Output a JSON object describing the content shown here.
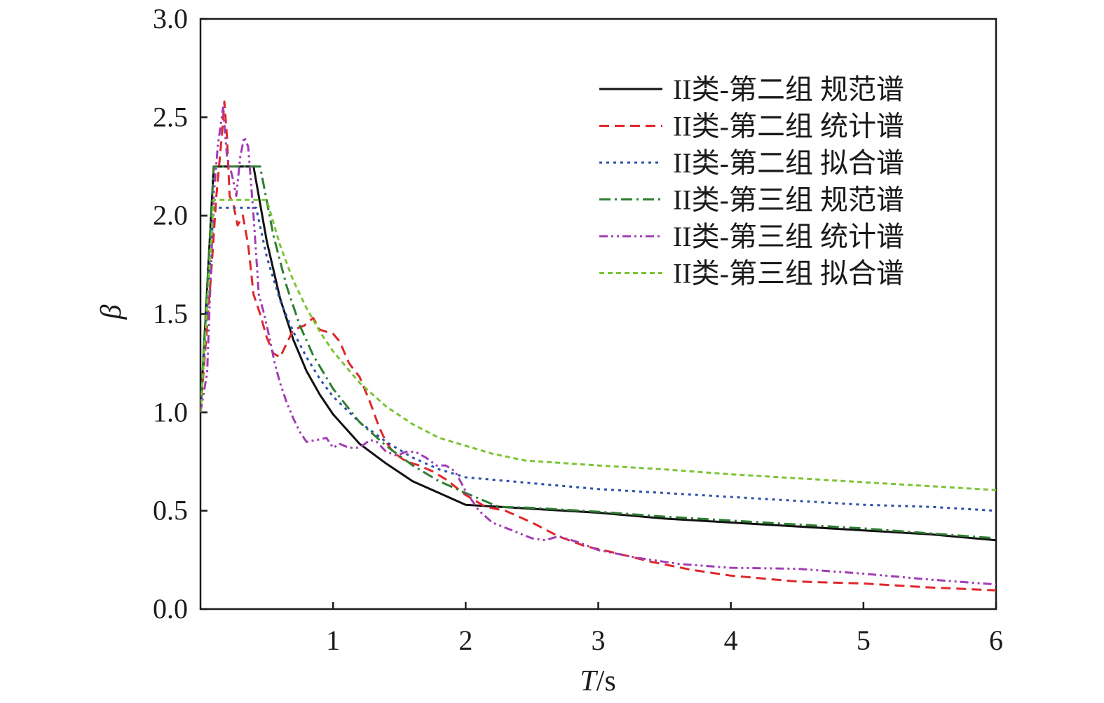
{
  "chart_data": {
    "type": "line",
    "xlabel_italic": "T",
    "xlabel_unit": "/s",
    "ylabel": "β",
    "xlim": [
      0,
      6
    ],
    "ylim": [
      0,
      3.0
    ],
    "x_ticks": [
      1,
      2,
      3,
      4,
      5,
      6
    ],
    "y_ticks": [
      0.0,
      0.5,
      1.0,
      1.5,
      2.0,
      2.5,
      3.0
    ],
    "x_tick_labels": [
      "1",
      "2",
      "3",
      "4",
      "5",
      "6"
    ],
    "y_tick_labels": [
      "0.0",
      "0.5",
      "1.0",
      "1.5",
      "2.0",
      "2.5",
      "3.0"
    ],
    "grid": false,
    "legend_position": "top-right",
    "series": [
      {
        "name": "II类-第二组 规范谱",
        "color": "#111111",
        "dash": "solid",
        "points": [
          [
            0,
            1.0
          ],
          [
            0.1,
            2.25
          ],
          [
            0.4,
            2.25
          ],
          [
            0.5,
            1.87
          ],
          [
            0.6,
            1.58
          ],
          [
            0.7,
            1.37
          ],
          [
            0.8,
            1.21
          ],
          [
            0.9,
            1.09
          ],
          [
            1.0,
            0.99
          ],
          [
            1.2,
            0.84
          ],
          [
            1.4,
            0.74
          ],
          [
            1.6,
            0.65
          ],
          [
            1.8,
            0.59
          ],
          [
            2.0,
            0.53
          ],
          [
            2.5,
            0.51
          ],
          [
            3.0,
            0.49
          ],
          [
            3.5,
            0.46
          ],
          [
            4.0,
            0.44
          ],
          [
            4.5,
            0.42
          ],
          [
            5.0,
            0.4
          ],
          [
            5.5,
            0.38
          ],
          [
            6.0,
            0.35
          ]
        ]
      },
      {
        "name": "II类-第二组 统计谱",
        "color": "#e0262b",
        "dash": "long-dash",
        "points": [
          [
            0,
            1.0
          ],
          [
            0.08,
            1.7
          ],
          [
            0.12,
            2.1
          ],
          [
            0.16,
            2.4
          ],
          [
            0.18,
            2.58
          ],
          [
            0.2,
            2.4
          ],
          [
            0.22,
            2.1
          ],
          [
            0.25,
            2.05
          ],
          [
            0.28,
            1.95
          ],
          [
            0.32,
            2.0
          ],
          [
            0.36,
            1.85
          ],
          [
            0.4,
            1.6
          ],
          [
            0.45,
            1.5
          ],
          [
            0.5,
            1.38
          ],
          [
            0.55,
            1.3
          ],
          [
            0.6,
            1.28
          ],
          [
            0.65,
            1.35
          ],
          [
            0.7,
            1.42
          ],
          [
            0.78,
            1.44
          ],
          [
            0.85,
            1.48
          ],
          [
            0.9,
            1.42
          ],
          [
            1.0,
            1.4
          ],
          [
            1.05,
            1.36
          ],
          [
            1.12,
            1.25
          ],
          [
            1.2,
            1.18
          ],
          [
            1.28,
            1.05
          ],
          [
            1.35,
            0.92
          ],
          [
            1.4,
            0.85
          ],
          [
            1.45,
            0.8
          ],
          [
            1.55,
            0.75
          ],
          [
            1.65,
            0.73
          ],
          [
            1.75,
            0.7
          ],
          [
            1.85,
            0.66
          ],
          [
            2.0,
            0.58
          ],
          [
            2.15,
            0.52
          ],
          [
            2.3,
            0.5
          ],
          [
            2.5,
            0.44
          ],
          [
            2.7,
            0.37
          ],
          [
            2.9,
            0.32
          ],
          [
            3.1,
            0.29
          ],
          [
            3.4,
            0.24
          ],
          [
            3.7,
            0.2
          ],
          [
            4.0,
            0.17
          ],
          [
            4.5,
            0.14
          ],
          [
            5.0,
            0.13
          ],
          [
            5.5,
            0.11
          ],
          [
            6.0,
            0.095
          ]
        ]
      },
      {
        "name": "II类-第二组 拟合谱",
        "color": "#2b4fa8",
        "dash": "dot",
        "points": [
          [
            0,
            1.0
          ],
          [
            0.1,
            2.04
          ],
          [
            0.42,
            2.04
          ],
          [
            0.5,
            1.79
          ],
          [
            0.6,
            1.57
          ],
          [
            0.7,
            1.41
          ],
          [
            0.8,
            1.28
          ],
          [
            0.9,
            1.17
          ],
          [
            1.0,
            1.08
          ],
          [
            1.2,
            0.95
          ],
          [
            1.4,
            0.85
          ],
          [
            1.6,
            0.77
          ],
          [
            1.8,
            0.71
          ],
          [
            2.0,
            0.67
          ],
          [
            2.5,
            0.64
          ],
          [
            3.0,
            0.61
          ],
          [
            3.5,
            0.59
          ],
          [
            4.0,
            0.57
          ],
          [
            4.5,
            0.55
          ],
          [
            5.0,
            0.53
          ],
          [
            5.5,
            0.52
          ],
          [
            6.0,
            0.5
          ]
        ]
      },
      {
        "name": "II类-第三组 规范谱",
        "color": "#2e7d32",
        "dash": "dash-dot",
        "points": [
          [
            0,
            1.0
          ],
          [
            0.1,
            2.25
          ],
          [
            0.45,
            2.25
          ],
          [
            0.55,
            1.9
          ],
          [
            0.65,
            1.64
          ],
          [
            0.75,
            1.44
          ],
          [
            0.85,
            1.29
          ],
          [
            1.0,
            1.12
          ],
          [
            1.2,
            0.95
          ],
          [
            1.4,
            0.83
          ],
          [
            1.6,
            0.73
          ],
          [
            1.8,
            0.65
          ],
          [
            2.0,
            0.59
          ],
          [
            2.25,
            0.52
          ],
          [
            2.5,
            0.515
          ],
          [
            3.0,
            0.495
          ],
          [
            3.5,
            0.47
          ],
          [
            4.0,
            0.45
          ],
          [
            4.5,
            0.43
          ],
          [
            5.0,
            0.41
          ],
          [
            5.5,
            0.385
          ],
          [
            6.0,
            0.36
          ]
        ]
      },
      {
        "name": "II类-第三组 统计谱",
        "color": "#a13cb5",
        "dash": "dash-dot-dot",
        "points": [
          [
            0,
            1.0
          ],
          [
            0.05,
            1.2
          ],
          [
            0.1,
            2.1
          ],
          [
            0.13,
            2.35
          ],
          [
            0.17,
            2.55
          ],
          [
            0.2,
            2.3
          ],
          [
            0.24,
            2.2
          ],
          [
            0.27,
            2.1
          ],
          [
            0.3,
            2.3
          ],
          [
            0.33,
            2.4
          ],
          [
            0.36,
            2.35
          ],
          [
            0.4,
            2.0
          ],
          [
            0.44,
            1.6
          ],
          [
            0.48,
            1.5
          ],
          [
            0.52,
            1.38
          ],
          [
            0.56,
            1.25
          ],
          [
            0.6,
            1.15
          ],
          [
            0.65,
            1.05
          ],
          [
            0.7,
            0.97
          ],
          [
            0.75,
            0.9
          ],
          [
            0.8,
            0.85
          ],
          [
            0.88,
            0.86
          ],
          [
            0.95,
            0.87
          ],
          [
            1.0,
            0.82
          ],
          [
            1.05,
            0.84
          ],
          [
            1.12,
            0.82
          ],
          [
            1.2,
            0.82
          ],
          [
            1.28,
            0.86
          ],
          [
            1.33,
            0.85
          ],
          [
            1.4,
            0.8
          ],
          [
            1.48,
            0.78
          ],
          [
            1.55,
            0.8
          ],
          [
            1.62,
            0.8
          ],
          [
            1.7,
            0.77
          ],
          [
            1.78,
            0.73
          ],
          [
            1.85,
            0.73
          ],
          [
            1.92,
            0.7
          ],
          [
            2.0,
            0.6
          ],
          [
            2.1,
            0.5
          ],
          [
            2.2,
            0.44
          ],
          [
            2.35,
            0.4
          ],
          [
            2.5,
            0.36
          ],
          [
            2.6,
            0.35
          ],
          [
            2.7,
            0.37
          ],
          [
            2.85,
            0.34
          ],
          [
            3.0,
            0.3
          ],
          [
            3.3,
            0.26
          ],
          [
            3.6,
            0.23
          ],
          [
            4.0,
            0.21
          ],
          [
            4.5,
            0.205
          ],
          [
            5.0,
            0.18
          ],
          [
            5.5,
            0.15
          ],
          [
            6.0,
            0.125
          ]
        ]
      },
      {
        "name": "II类-第三组 拟合谱",
        "color": "#7cc437",
        "dash": "short-dash",
        "points": [
          [
            0,
            1.0
          ],
          [
            0.1,
            2.08
          ],
          [
            0.5,
            2.08
          ],
          [
            0.6,
            1.85
          ],
          [
            0.7,
            1.67
          ],
          [
            0.8,
            1.53
          ],
          [
            0.9,
            1.41
          ],
          [
            1.0,
            1.31
          ],
          [
            1.2,
            1.15
          ],
          [
            1.4,
            1.03
          ],
          [
            1.6,
            0.94
          ],
          [
            1.8,
            0.87
          ],
          [
            2.0,
            0.83
          ],
          [
            2.2,
            0.79
          ],
          [
            2.45,
            0.755
          ],
          [
            3.0,
            0.73
          ],
          [
            3.5,
            0.71
          ],
          [
            4.0,
            0.685
          ],
          [
            4.5,
            0.665
          ],
          [
            5.0,
            0.645
          ],
          [
            5.5,
            0.625
          ],
          [
            6.0,
            0.605
          ]
        ]
      }
    ]
  }
}
